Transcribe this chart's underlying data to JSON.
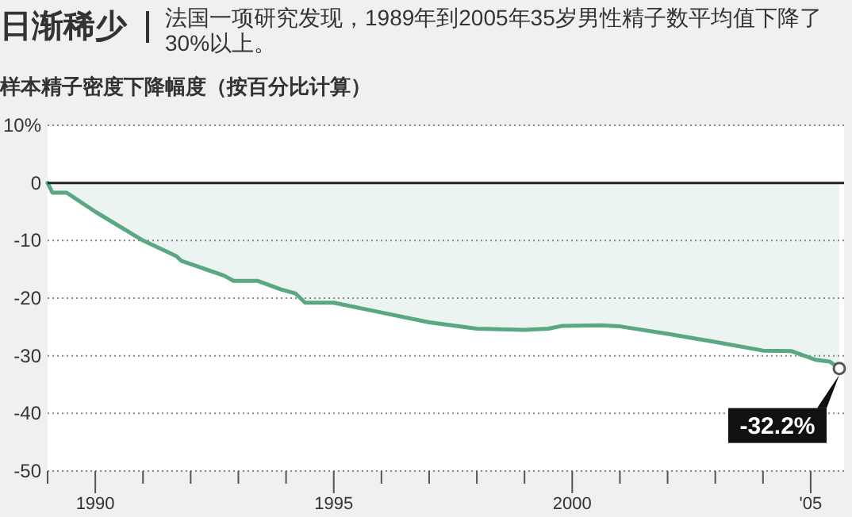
{
  "chart_data": {
    "type": "area",
    "title": "日渐稀少",
    "subtitle": "法国一项研究发现，1989年到2005年35岁男性精子数平均值下降了30%以上。",
    "ylabel": "样本精子密度下降幅度（按百分比计算）",
    "x": [
      1989,
      1989.1,
      1989.4,
      1990,
      1991,
      1991.7,
      1991.8,
      1992.7,
      1992.9,
      1993.4,
      1993.9,
      1994.2,
      1994.4,
      1995,
      1996,
      1997,
      1998,
      1999,
      1999.5,
      1999.8,
      2000.6,
      2001,
      2002,
      2003,
      2004,
      2004.6,
      2005.1,
      2005.4,
      2005.6
    ],
    "series": [
      {
        "color": "#5aa882",
        "values": [
          0,
          -1.7,
          -1.7,
          -5,
          -10,
          -12.7,
          -13.5,
          -16.1,
          -17,
          -17,
          -18.5,
          -19.2,
          -20.8,
          -20.8,
          -22.5,
          -24.2,
          -25.3,
          -25.5,
          -25.3,
          -24.8,
          -24.7,
          -24.9,
          -26.2,
          -27.6,
          -29.1,
          -29.2,
          -30.7,
          -31,
          -32.2
        ]
      }
    ],
    "xlim": [
      1989,
      2005.7
    ],
    "ylim": [
      -50,
      10
    ],
    "xticks": [
      {
        "value": 1989,
        "label": null
      },
      {
        "value": 1990,
        "label": "1990"
      },
      {
        "value": 1991,
        "label": null
      },
      {
        "value": 1992,
        "label": null
      },
      {
        "value": 1993,
        "label": null
      },
      {
        "value": 1994,
        "label": null
      },
      {
        "value": 1995,
        "label": "1995"
      },
      {
        "value": 1996,
        "label": null
      },
      {
        "value": 1997,
        "label": null
      },
      {
        "value": 1998,
        "label": null
      },
      {
        "value": 1999,
        "label": null
      },
      {
        "value": 2000,
        "label": "2000"
      },
      {
        "value": 2001,
        "label": null
      },
      {
        "value": 2002,
        "label": null
      },
      {
        "value": 2003,
        "label": null
      },
      {
        "value": 2004,
        "label": null
      },
      {
        "value": 2005,
        "label": "'05"
      }
    ],
    "yticks": [
      {
        "value": 10,
        "label": "10%"
      },
      0,
      -10,
      -20,
      -30,
      -40,
      -50
    ],
    "grid": "y",
    "ref_lines": [
      {
        "axis": "y",
        "value": 0,
        "color": "#222222"
      }
    ],
    "annotations": [
      {
        "text": "-32.2%",
        "x": 2005.6,
        "y": -32.2
      }
    ]
  }
}
